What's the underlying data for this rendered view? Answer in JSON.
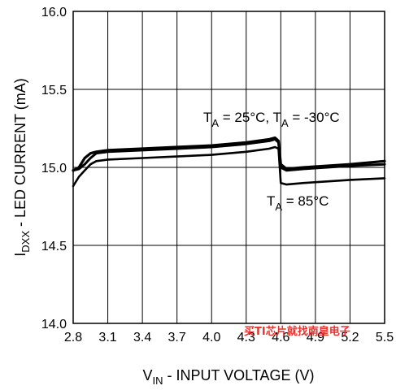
{
  "chart_data": {
    "type": "line",
    "xlabel": {
      "main": "V",
      "sub": "IN",
      "rest": " - INPUT VOLTAGE (V)"
    },
    "ylabel": {
      "main": "I",
      "sub": "DXX",
      "rest": " - LED CURRENT (mA)"
    },
    "xlim": [
      2.8,
      5.5
    ],
    "ylim": [
      14.0,
      16.0
    ],
    "xticks": [
      "2.8",
      "3.1",
      "3.4",
      "3.7",
      "4.0",
      "4.3",
      "4.6",
      "4.9",
      "5.2",
      "5.5"
    ],
    "yticks": [
      "14.0",
      "14.5",
      "15.0",
      "15.5",
      "16.0"
    ],
    "grid": true,
    "annotations": [
      {
        "id": "ann-25-30",
        "parts": [
          {
            "t": "T"
          },
          {
            "t": "A",
            "sub": true
          },
          {
            "t": " = 25°C, T"
          },
          {
            "t": "A",
            "sub": true
          },
          {
            "t": " = -30°C"
          }
        ]
      },
      {
        "id": "ann-85",
        "parts": [
          {
            "t": "T"
          },
          {
            "t": "A",
            "sub": true
          },
          {
            "t": " = 85°C"
          }
        ]
      }
    ],
    "series": [
      {
        "x": [
          2.8,
          2.85,
          2.9,
          2.95,
          3.0,
          3.1,
          3.4,
          3.7,
          4.0,
          4.3,
          4.5,
          4.55,
          4.58,
          4.6,
          4.65,
          4.8,
          5.0,
          5.2,
          5.5
        ],
        "values": [
          14.98,
          15.0,
          15.06,
          15.09,
          15.1,
          15.11,
          15.12,
          15.13,
          15.14,
          15.16,
          15.18,
          15.19,
          15.17,
          15.02,
          14.99,
          15.0,
          15.01,
          15.02,
          15.04
        ]
      },
      {
        "x": [
          2.8,
          2.85,
          2.9,
          2.95,
          3.0,
          3.1,
          3.4,
          3.7,
          4.0,
          4.3,
          4.5,
          4.55,
          4.58,
          4.6,
          4.65,
          4.8,
          5.0,
          5.2,
          5.5
        ],
        "values": [
          14.98,
          14.99,
          15.02,
          15.06,
          15.09,
          15.1,
          15.11,
          15.12,
          15.13,
          15.15,
          15.17,
          15.18,
          15.16,
          15.0,
          14.98,
          14.99,
          15.0,
          15.01,
          15.02
        ]
      },
      {
        "x": [
          2.8,
          2.85,
          2.9,
          2.95,
          3.0,
          3.1,
          3.4,
          3.7,
          4.0,
          4.3,
          4.5,
          4.55,
          4.58,
          4.6,
          4.65,
          4.8,
          5.0,
          5.2,
          5.5
        ],
        "values": [
          14.88,
          14.94,
          14.98,
          15.02,
          15.04,
          15.05,
          15.06,
          15.07,
          15.08,
          15.1,
          15.12,
          15.13,
          15.12,
          14.9,
          14.89,
          14.9,
          14.91,
          14.92,
          14.93
        ]
      }
    ]
  },
  "watermark": "买TI芯片就找南皇电子"
}
